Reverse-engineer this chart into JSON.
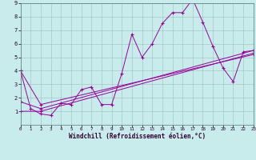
{
  "xlabel": "Windchill (Refroidissement éolien,°C)",
  "background_color": "#c8ecec",
  "grid_color": "#b0d0d0",
  "line_color": "#990099",
  "xlim": [
    0,
    23
  ],
  "ylim": [
    0,
    9
  ],
  "xticks": [
    0,
    1,
    2,
    3,
    4,
    5,
    6,
    7,
    8,
    9,
    10,
    11,
    12,
    13,
    14,
    15,
    16,
    17,
    18,
    19,
    20,
    21,
    22,
    23
  ],
  "yticks": [
    1,
    2,
    3,
    4,
    5,
    6,
    7,
    8,
    9
  ],
  "line1_x": [
    0,
    1,
    2,
    3,
    4,
    5,
    6,
    7,
    8,
    9,
    10,
    11,
    12,
    13,
    14,
    15,
    16,
    17,
    18,
    19,
    20,
    21,
    22,
    23
  ],
  "line1_y": [
    4.0,
    1.2,
    0.8,
    0.7,
    1.6,
    1.5,
    2.6,
    2.8,
    1.5,
    1.5,
    3.8,
    6.7,
    5.0,
    6.0,
    7.5,
    8.3,
    8.3,
    9.3,
    7.6,
    5.8,
    4.2,
    3.2,
    5.4,
    5.5
  ],
  "line2_x": [
    0,
    2,
    23
  ],
  "line2_y": [
    1.0,
    1.0,
    5.3
  ],
  "line3_x": [
    0,
    2,
    23
  ],
  "line3_y": [
    1.7,
    1.2,
    5.5
  ],
  "line4_x": [
    0,
    2,
    23
  ],
  "line4_y": [
    4.0,
    1.5,
    5.2
  ]
}
